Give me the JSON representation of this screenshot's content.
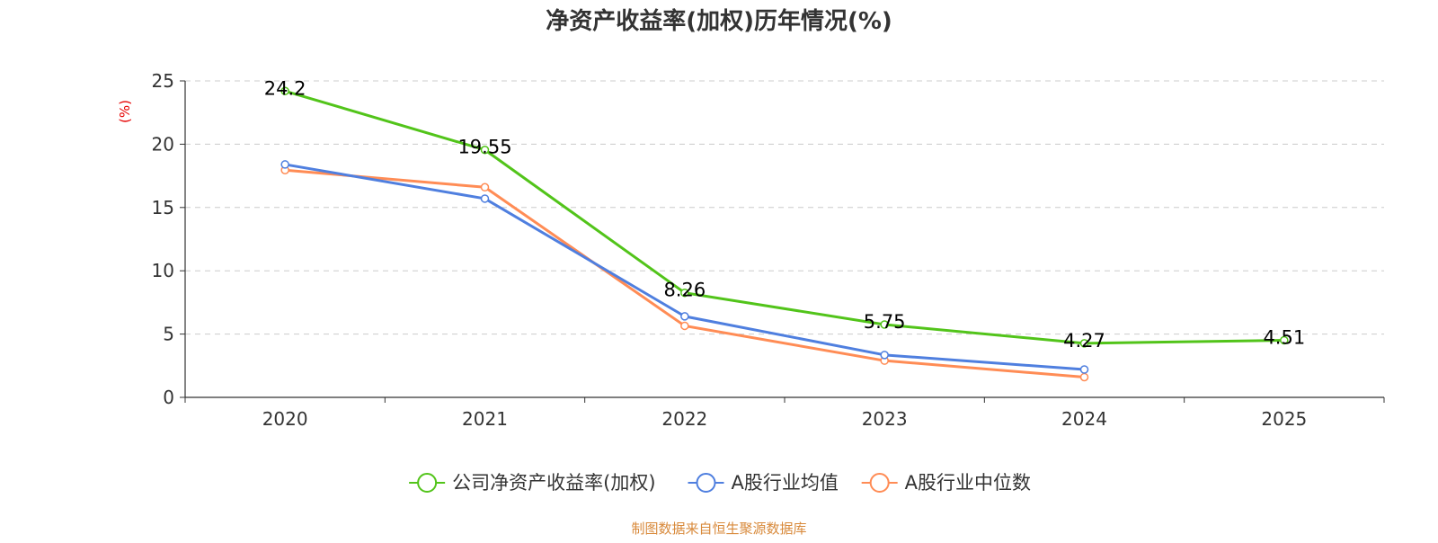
{
  "colors": {
    "company": "#52c41a",
    "average": "#4f7fdf",
    "median": "#ff8c55",
    "unit_label": "#e60000",
    "source": "#d8893a",
    "grid": "#cccccc",
    "axis": "#333333",
    "text": "#333333",
    "label": "#000000"
  },
  "source_text": "制图数据来自恒生聚源数据库",
  "chart_data": {
    "type": "line",
    "title": "净资产收益率(加权)历年情况(%)",
    "ylabel": "(%)",
    "xlabel": "",
    "categories": [
      "2020",
      "2021",
      "2022",
      "2023",
      "2024",
      "2025"
    ],
    "ylim": [
      0,
      25
    ],
    "yticks": [
      "0",
      "5",
      "10",
      "15",
      "20",
      "25"
    ],
    "ytick_values": [
      0,
      5,
      10,
      15,
      20,
      25
    ],
    "grid": true,
    "legend_position": "bottom",
    "series": [
      {
        "name": "公司净资产收益率(加权)",
        "color_key": "company",
        "values": [
          24.2,
          19.55,
          8.26,
          5.75,
          4.27,
          4.51
        ],
        "labels": [
          "24.2",
          "19.55",
          "8.26",
          "5.75",
          "4.27",
          "4.51"
        ]
      },
      {
        "name": "A股行业均值",
        "color_key": "average",
        "values": [
          18.4,
          15.7,
          6.4,
          3.35,
          2.2,
          null
        ],
        "labels": []
      },
      {
        "name": "A股行业中位数",
        "color_key": "median",
        "values": [
          17.95,
          16.6,
          5.65,
          2.9,
          1.6,
          null
        ],
        "labels": []
      }
    ]
  }
}
